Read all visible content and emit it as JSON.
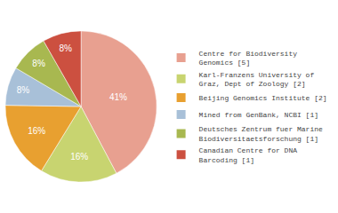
{
  "chart_data": {
    "type": "pie",
    "categories": [
      "Centre for Biodiversity\nGenomics [5]",
      "Karl-Franzens University of\nGraz, Dept of Zoology [2]",
      "Beijing Genomics Institute [2]",
      "Mined from GenBank, NCBI [1]",
      "Deutsches Zentrum fuer Marine\nBiodiversitaetsforschung [1]",
      "Canadian Centre for DNA\nBarcoding [1]"
    ],
    "values": [
      41,
      16,
      16,
      8,
      8,
      8
    ],
    "value_labels": [
      "41%",
      "16%",
      "16%",
      "8%",
      "8%",
      "8%"
    ],
    "colors": [
      "#e8a090",
      "#c8d470",
      "#e8a030",
      "#a8c0d8",
      "#a8b850",
      "#cc5040"
    ],
    "data_labels": true,
    "legend": "right"
  }
}
